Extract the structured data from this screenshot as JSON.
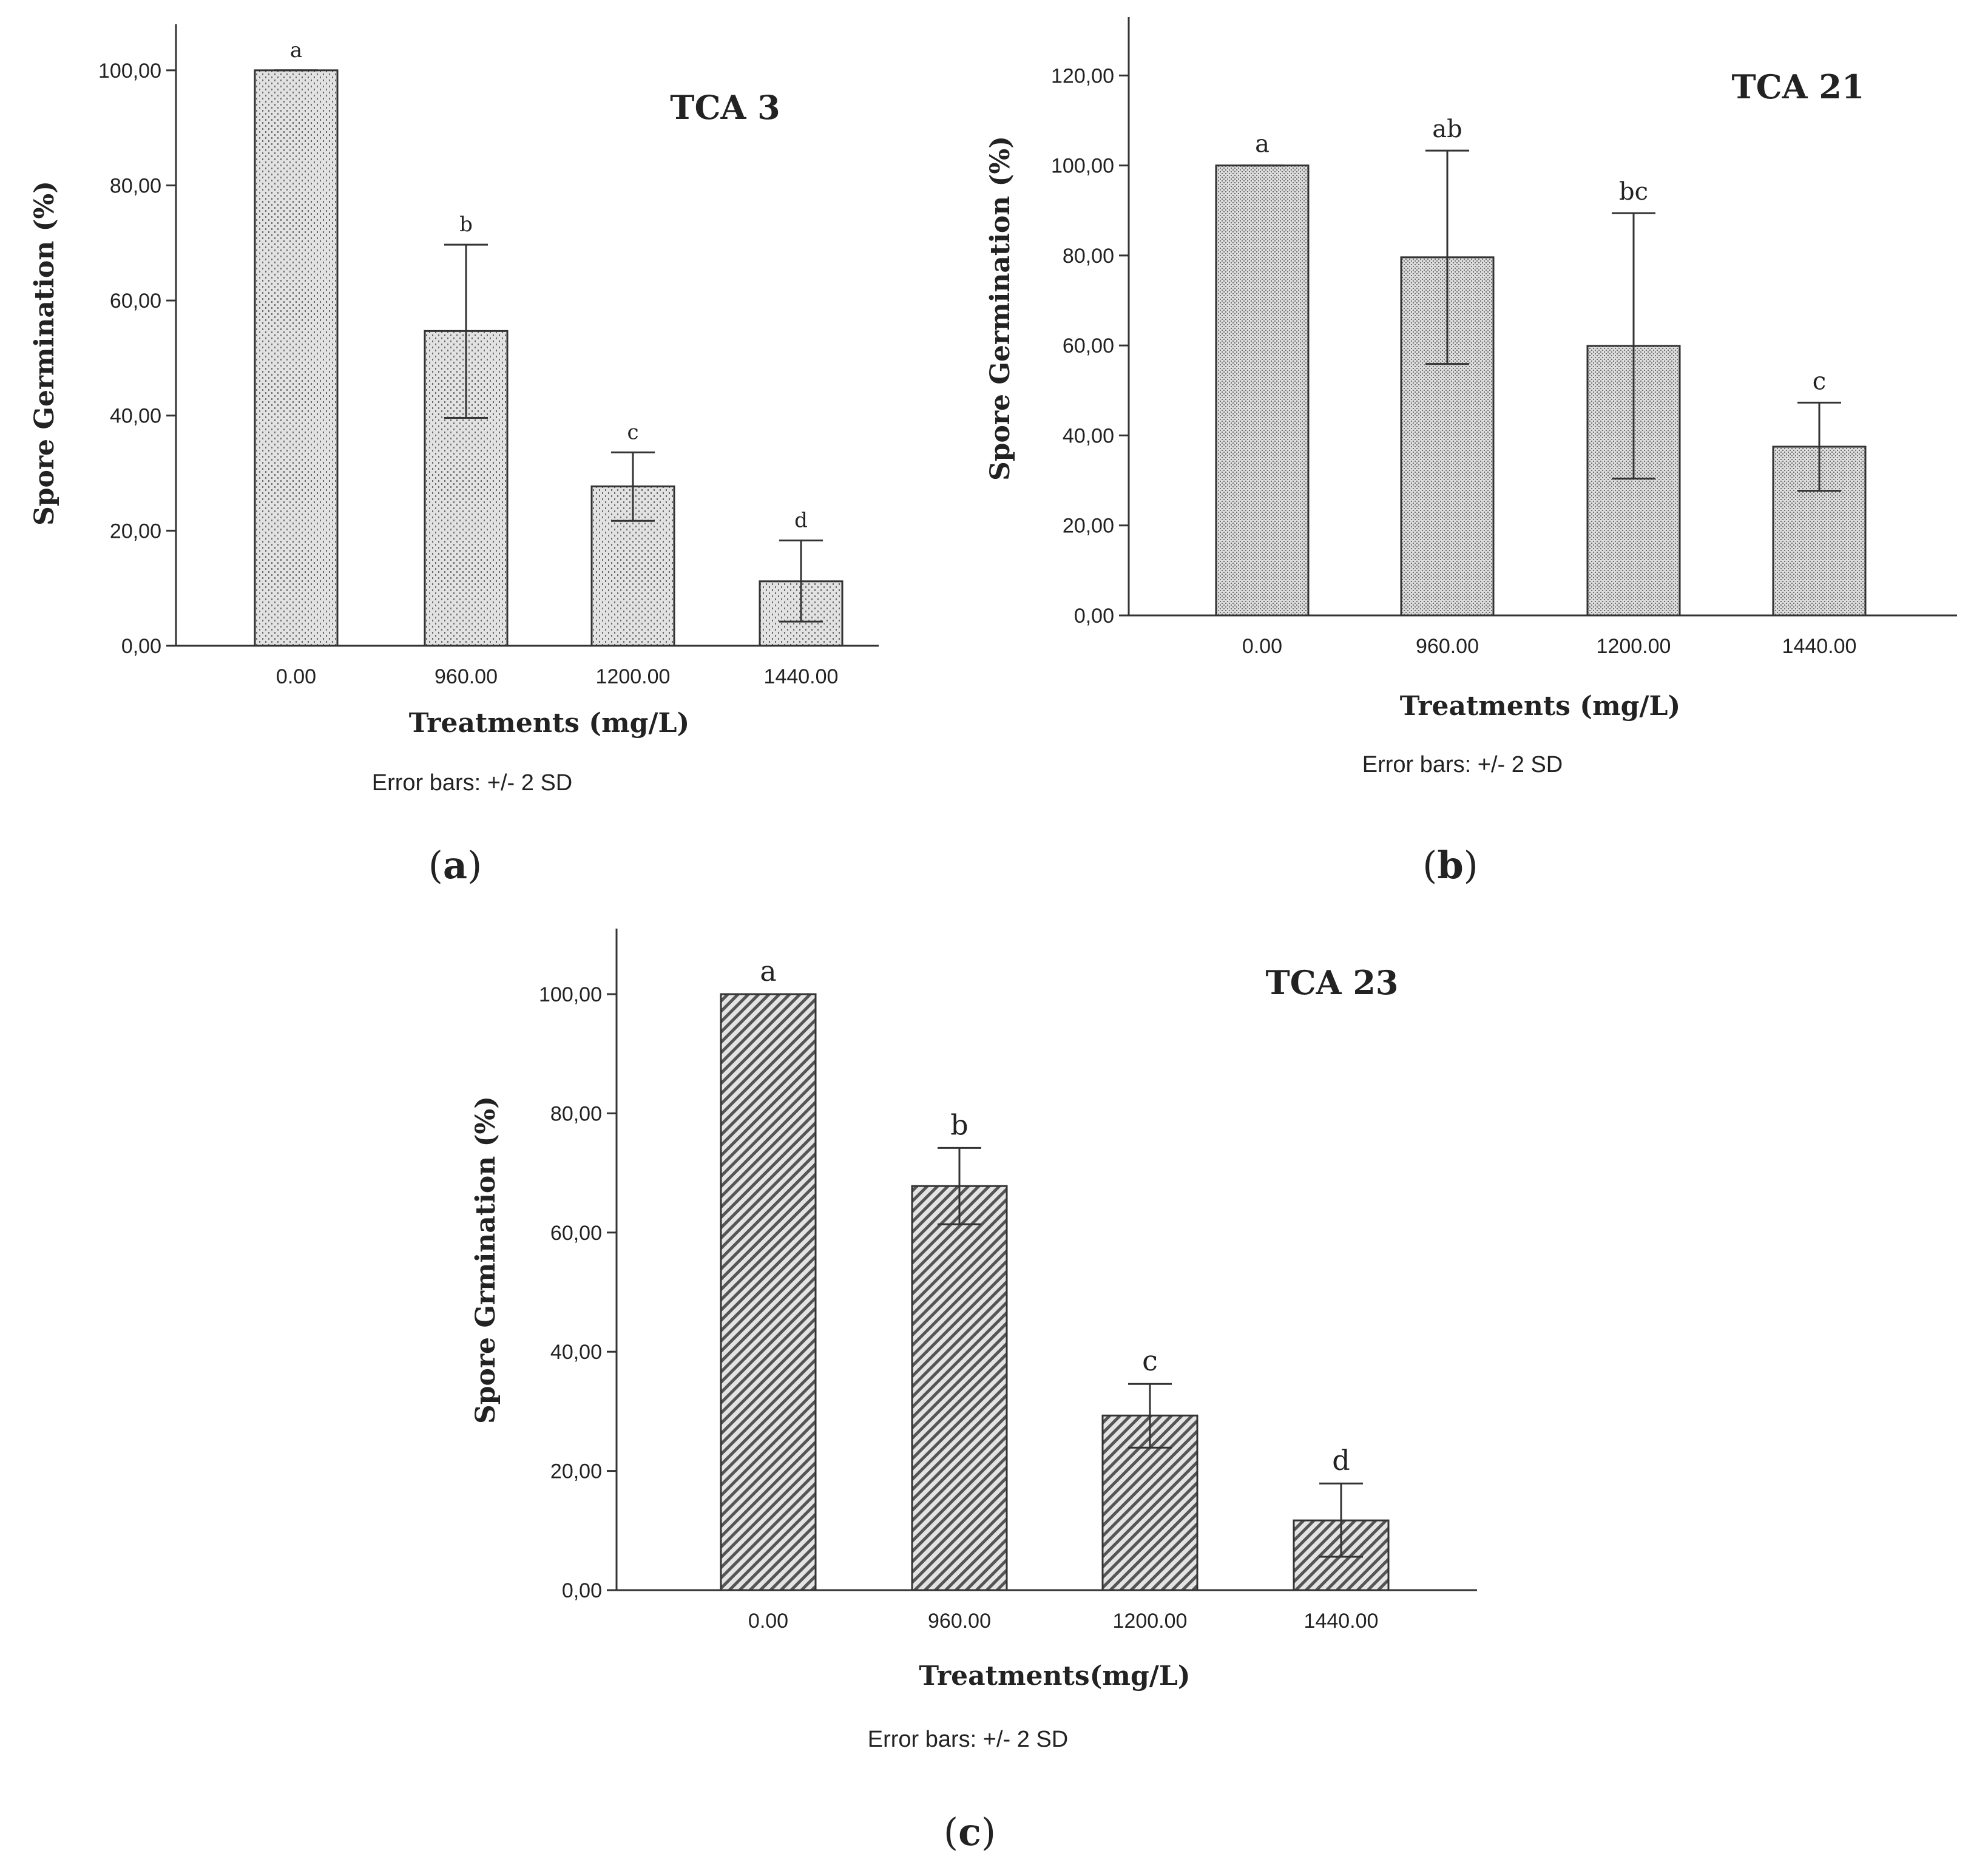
{
  "figure": {
    "panel_labels": [
      "a",
      "b",
      "c"
    ]
  },
  "colors": {
    "axis": "#333333",
    "bar_fill": "#dedede",
    "bar_stroke": "#333333",
    "pattern_ink": "#6a6a6a",
    "text": "#222222"
  },
  "chart_data": [
    {
      "type": "bar",
      "title": "TCA 3",
      "panel": "a",
      "xlabel": "Treatments (mg/L)",
      "ylabel": "Spore Germination (%)",
      "note": "Error bars: +/- 2 SD",
      "categories": [
        "0.00",
        "960.00",
        "1200.00",
        "1440.00"
      ],
      "values": [
        100.0,
        54.7,
        27.7,
        11.2
      ],
      "error_low": [
        100.0,
        39.6,
        21.7,
        4.2
      ],
      "error_high": [
        100.0,
        69.7,
        33.6,
        18.3
      ],
      "letters": [
        "a",
        "b",
        "c",
        "d"
      ],
      "ylim": [
        0,
        108
      ],
      "yticks": [
        0,
        20,
        40,
        60,
        80,
        100
      ],
      "ytick_labels": [
        "0,00",
        "20,00",
        "40,00",
        "60,00",
        "80,00",
        "100,00"
      ],
      "pattern": "dots",
      "grid": false
    },
    {
      "type": "bar",
      "title": "TCA 21",
      "panel": "b",
      "xlabel": "Treatments (mg/L)",
      "ylabel": "Spore Germination (%)",
      "note": "Error bars: +/- 2 SD",
      "categories": [
        "0.00",
        "960.00",
        "1200.00",
        "1440.00"
      ],
      "values": [
        100.0,
        79.6,
        59.9,
        37.5
      ],
      "error_low": [
        100.0,
        55.9,
        30.4,
        27.7
      ],
      "error_high": [
        100.0,
        103.3,
        89.4,
        47.3
      ],
      "letters": [
        "a",
        "ab",
        "bc",
        "c"
      ],
      "ylim": [
        0,
        133
      ],
      "yticks": [
        0,
        20,
        40,
        60,
        80,
        100,
        120
      ],
      "ytick_labels": [
        "0,00",
        "20,00",
        "40,00",
        "60,00",
        "80,00",
        "100,00",
        "120,00"
      ],
      "pattern": "dense",
      "grid": false
    },
    {
      "type": "bar",
      "title": "TCA 23",
      "panel": "c",
      "xlabel": "Treatments(mg/L)",
      "ylabel": "Spore Grmination (%)",
      "note": "Error bars: +/- 2 SD",
      "categories": [
        "0.00",
        "960.00",
        "1200.00",
        "1440.00"
      ],
      "values": [
        100.0,
        67.8,
        29.3,
        11.7
      ],
      "error_low": [
        100.0,
        61.4,
        23.9,
        5.6
      ],
      "error_high": [
        100.0,
        74.2,
        34.6,
        17.9
      ],
      "letters": [
        "a",
        "b",
        "c",
        "d"
      ],
      "ylim": [
        0,
        111
      ],
      "yticks": [
        0,
        20,
        40,
        60,
        80,
        100
      ],
      "ytick_labels": [
        "0,00",
        "20,00",
        "40,00",
        "60,00",
        "80,00",
        "100,00"
      ],
      "pattern": "diagonal",
      "grid": false
    }
  ]
}
